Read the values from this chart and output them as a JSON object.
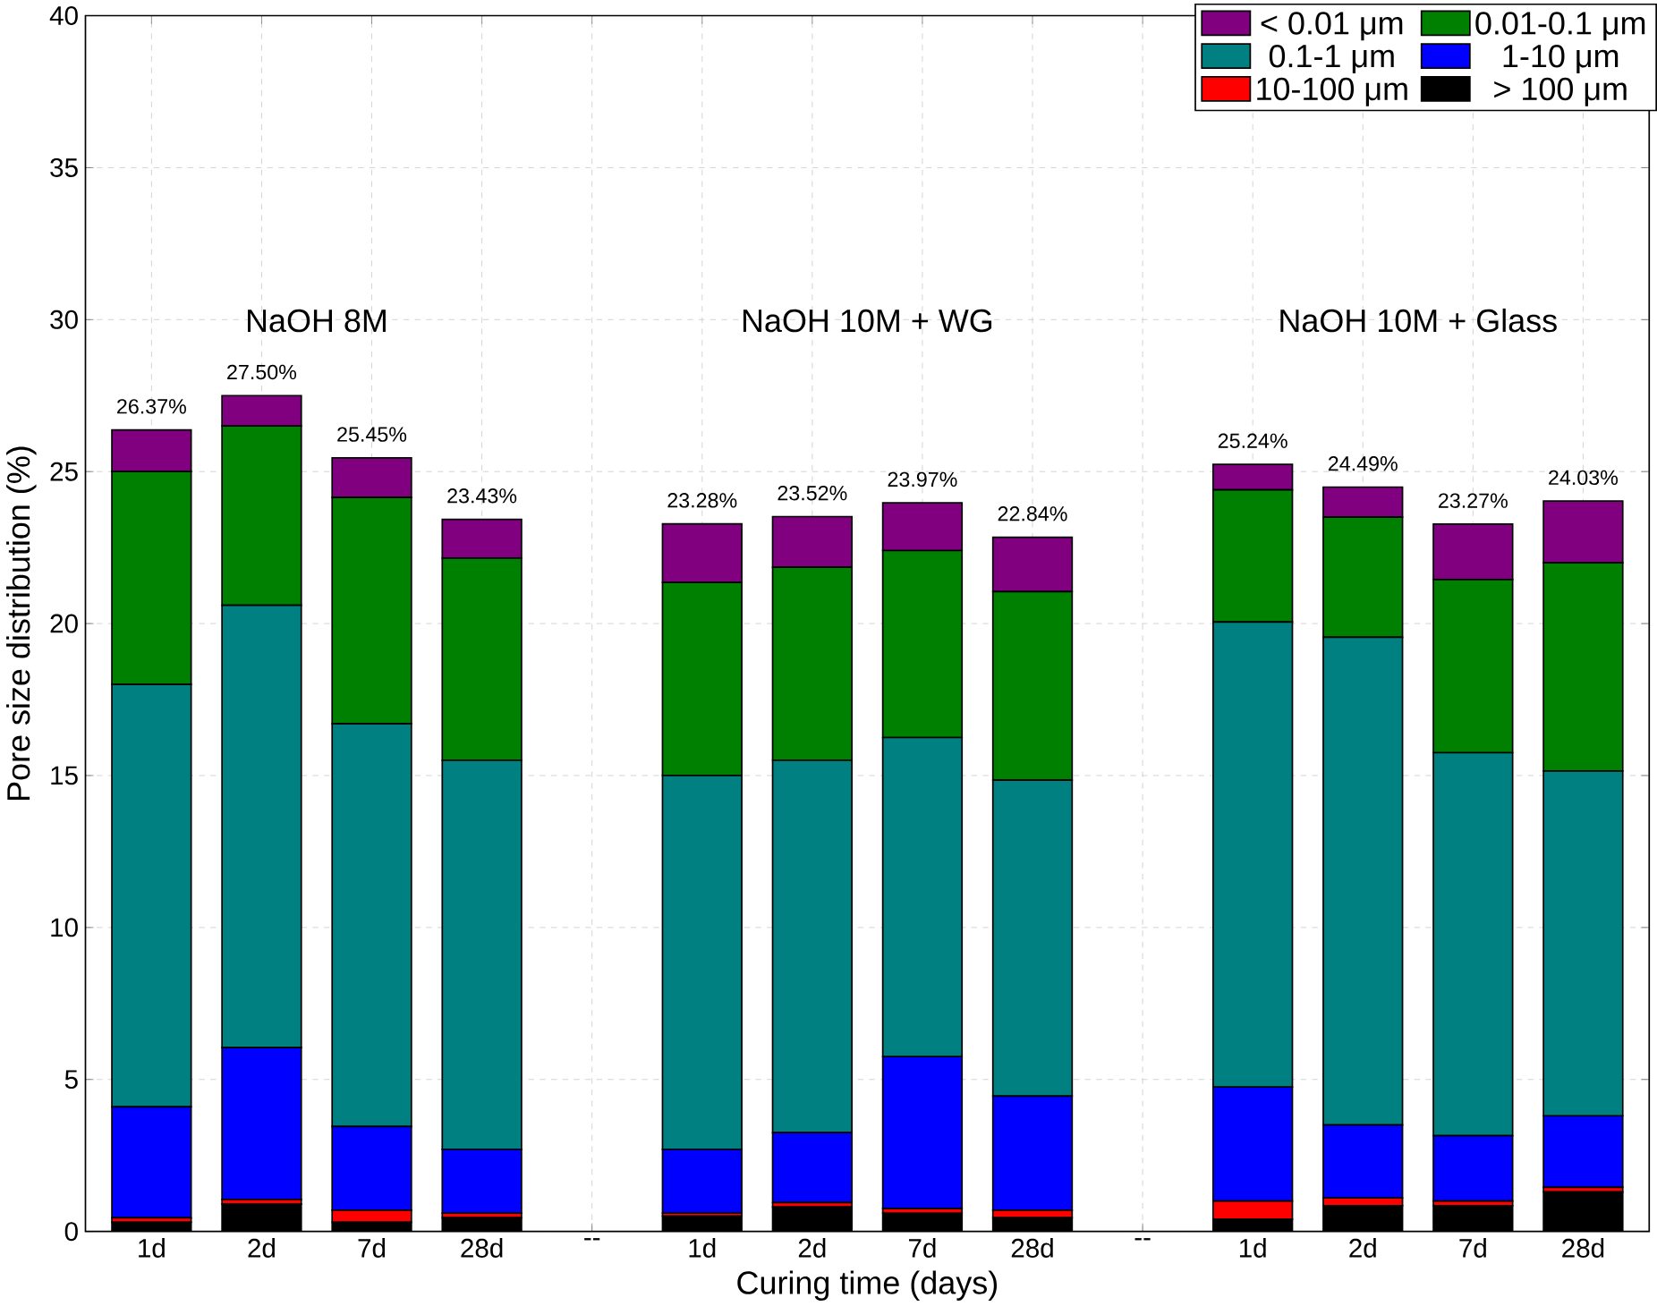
{
  "chart_data": {
    "type": "bar",
    "stacked": true,
    "xlabel": "Curing time (days)",
    "ylabel": "Pore size distribution (%)",
    "categories": [
      "1d",
      "2d",
      "7d",
      "28d",
      "--",
      "1d",
      "2d",
      "7d",
      "28d",
      "--",
      "1d",
      "2d",
      "7d",
      "28d"
    ],
    "series": [
      {
        "name": "> 100 μm",
        "color": "#000000",
        "values": [
          0.3,
          0.9,
          0.3,
          0.45,
          null,
          0.5,
          0.8,
          0.6,
          0.45,
          null,
          0.4,
          0.85,
          0.85,
          1.3
        ]
      },
      {
        "name": "10-100 μm",
        "color": "#ff0000",
        "values": [
          0.15,
          0.15,
          0.4,
          0.15,
          null,
          0.1,
          0.15,
          0.15,
          0.25,
          null,
          0.6,
          0.25,
          0.15,
          0.15
        ]
      },
      {
        "name": "1-10 μm",
        "color": "#0000ff",
        "values": [
          3.65,
          5.0,
          2.75,
          2.1,
          null,
          2.1,
          2.3,
          5.0,
          3.75,
          null,
          3.75,
          2.4,
          2.15,
          2.35
        ]
      },
      {
        "name": "0.1-1 μm",
        "color": "#008080",
        "values": [
          13.9,
          14.55,
          13.25,
          12.8,
          null,
          12.3,
          12.25,
          10.5,
          10.4,
          null,
          15.3,
          16.05,
          12.6,
          11.35
        ]
      },
      {
        "name": "0.01-0.1 μm",
        "color": "#008000",
        "values": [
          7.0,
          5.9,
          7.45,
          6.65,
          null,
          6.35,
          6.35,
          6.15,
          6.2,
          null,
          4.35,
          3.95,
          5.7,
          6.85
        ]
      },
      {
        "name": "< 0.01 μm",
        "color": "#800080",
        "values": [
          1.37,
          1.0,
          1.3,
          1.28,
          null,
          1.93,
          1.67,
          1.57,
          1.79,
          null,
          0.84,
          0.99,
          1.82,
          2.03
        ]
      }
    ],
    "totals": [
      "26.37%",
      "27.50%",
      "25.45%",
      "23.43%",
      null,
      "23.28%",
      "23.52%",
      "23.97%",
      "22.84%",
      null,
      "25.24%",
      "24.49%",
      "23.27%",
      "24.03%"
    ],
    "annotations": [
      "NaOH 8M",
      "NaOH 10M + WG",
      "NaOH 10M + Glass"
    ],
    "ylim": [
      0,
      40
    ],
    "yticks": [
      0,
      5,
      10,
      15,
      20,
      25,
      30,
      35,
      40
    ],
    "grid": true,
    "legend": "top right"
  }
}
